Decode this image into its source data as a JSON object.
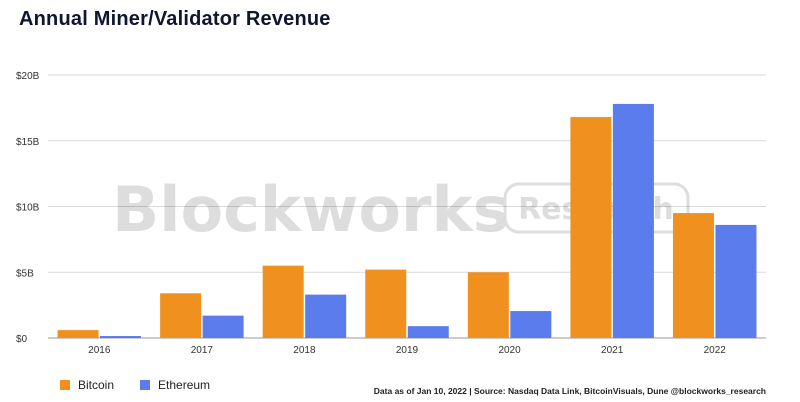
{
  "title": "Annual Miner/Validator Revenue",
  "watermark": {
    "brand": "Blockworks",
    "tag": "Research"
  },
  "source_note": "Data as of Jan 10, 2022 | Source: Nasdaq Data Link, BitcoinVisuals, Dune @blockworks_research",
  "colors": {
    "bitcoin": "#f0901f",
    "ethereum": "#5b7cec",
    "grid": "#d9d9d9",
    "axis": "#999999"
  },
  "chart_data": {
    "type": "bar",
    "title": "Annual Miner/Validator Revenue",
    "categories": [
      "2016",
      "2017",
      "2018",
      "2019",
      "2020",
      "2021",
      "2022"
    ],
    "series": [
      {
        "name": "Bitcoin",
        "color": "#f0901f",
        "values": [
          0.6,
          3.4,
          5.5,
          5.2,
          5.0,
          16.8,
          9.5
        ]
      },
      {
        "name": "Ethereum",
        "color": "#5b7cec",
        "values": [
          0.15,
          1.7,
          3.3,
          0.9,
          2.05,
          17.8,
          8.6
        ]
      }
    ],
    "unit": "billions USD",
    "ylim": [
      0,
      20
    ],
    "yticks": [
      {
        "value": 0,
        "label": "$0"
      },
      {
        "value": 5,
        "label": "$5B"
      },
      {
        "value": 10,
        "label": "$10B"
      },
      {
        "value": 15,
        "label": "$15B"
      },
      {
        "value": 20,
        "label": "$20B"
      }
    ],
    "grid": true,
    "legend_position": "bottom-left"
  }
}
